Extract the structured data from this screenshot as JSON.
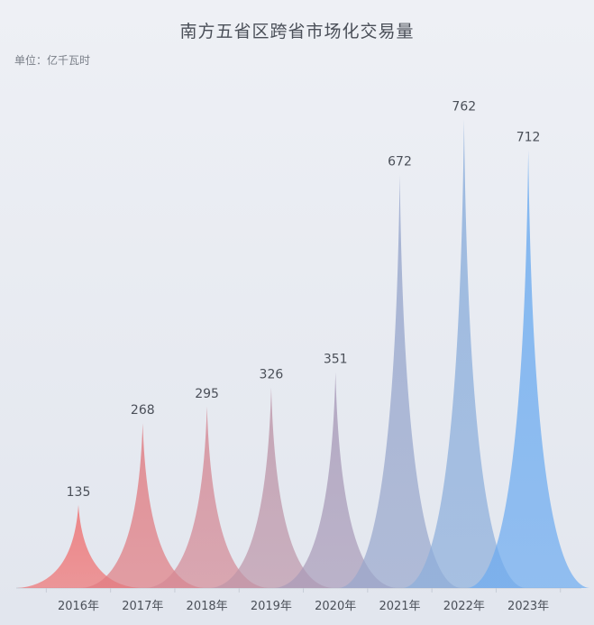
{
  "chart_data": {
    "type": "bar",
    "title": "南方五省区跨省市场化交易量",
    "unit_label": "单位：亿千瓦时",
    "categories": [
      "2016年",
      "2017年",
      "2018年",
      "2019年",
      "2020年",
      "2021年",
      "2022年",
      "2023年"
    ],
    "series": [
      {
        "values": [
          135,
          268,
          295,
          326,
          351,
          672,
          762,
          712
        ]
      }
    ],
    "ylim": [
      0,
      800
    ],
    "grid": false,
    "colors": [
      "#ef6f6f",
      "#e07a80",
      "#d48894",
      "#bd95a8",
      "#a89ab8",
      "#97a6cc",
      "#8aaddb",
      "#6aaaf0"
    ]
  }
}
